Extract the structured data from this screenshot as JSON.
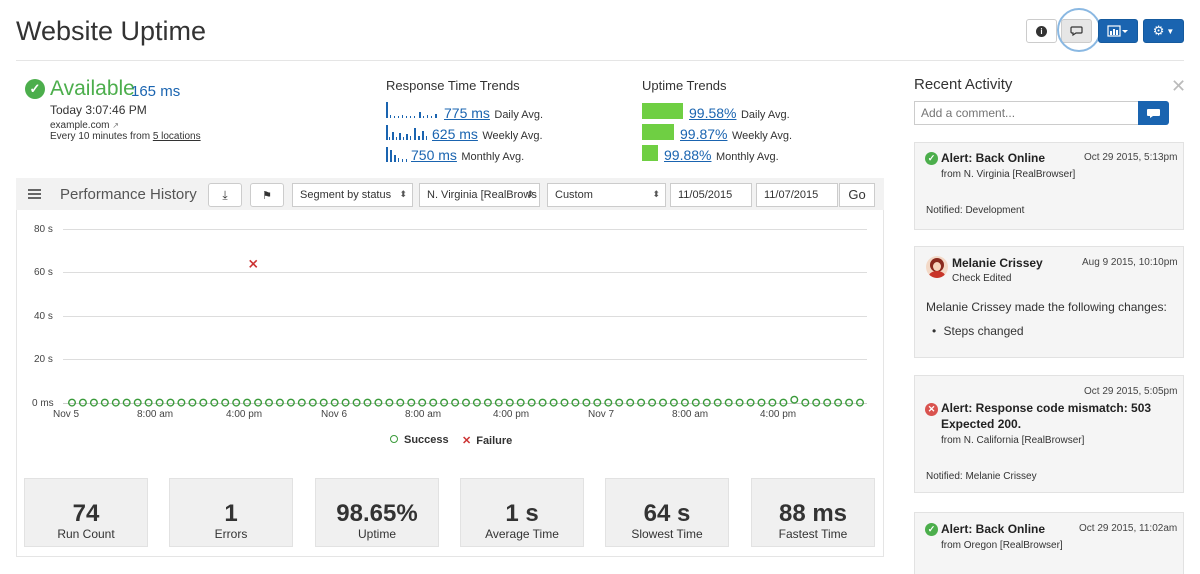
{
  "header": {
    "title": "Website Uptime",
    "buttons": [
      {
        "name": "info",
        "icon": "info-icon"
      },
      {
        "name": "comments",
        "icon": "comment-icon",
        "active": true
      },
      {
        "name": "reports",
        "icon": "bar-chart-icon"
      },
      {
        "name": "settings",
        "icon": "gear-icon"
      }
    ]
  },
  "status": {
    "state": "Available",
    "response": "165 ms",
    "time": "Today 3:07:46 PM",
    "site": "example.com",
    "frequency_prefix": "Every 10 minutes from ",
    "locations_link": "5 locations"
  },
  "response_trends": {
    "title": "Response Time Trends",
    "rows": [
      {
        "value": "775 ms",
        "label": "Daily Avg."
      },
      {
        "value": "625 ms",
        "label": "Weekly Avg."
      },
      {
        "value": "750 ms",
        "label": "Monthly Avg."
      }
    ]
  },
  "uptime_trends": {
    "title": "Uptime Trends",
    "rows": [
      {
        "value": "99.58%",
        "label": "Daily Avg."
      },
      {
        "value": "99.87%",
        "label": "Weekly Avg.",
        "fill": 0.7
      },
      {
        "value": "99.88%",
        "label": "Monthly Avg.",
        "fill": 0.45
      }
    ]
  },
  "performance": {
    "title": "Performance History",
    "segment": "Segment by status",
    "location": "N. Virginia [RealBrows",
    "range": "Custom",
    "start_date": "11/05/2015",
    "end_date": "11/07/2015",
    "go_label": "Go"
  },
  "chart_data": {
    "type": "scatter",
    "yticks": [
      "80 s",
      "60 s",
      "40 s",
      "20 s",
      "0 ms"
    ],
    "ylim": [
      0,
      80
    ],
    "xticks": [
      "Nov 5",
      "8:00 am",
      "4:00 pm",
      "Nov 6",
      "8:00 am",
      "4:00 pm",
      "Nov 7",
      "8:00 am",
      "4:00 pm"
    ],
    "series": [
      {
        "name": "Success",
        "color": "#3a9a3a",
        "count": 73,
        "value": 0.2
      },
      {
        "name": "Failure",
        "color": "#cc3333",
        "points": [
          {
            "x_index": 0.23,
            "y": 64
          }
        ]
      }
    ]
  },
  "stats": [
    {
      "value": "74",
      "label": "Run Count"
    },
    {
      "value": "1",
      "label": "Errors"
    },
    {
      "value": "98.65%",
      "label": "Uptime"
    },
    {
      "value": "1 s",
      "label": "Average Time"
    },
    {
      "value": "64 s",
      "label": "Slowest Time"
    },
    {
      "value": "88 ms",
      "label": "Fastest Time"
    }
  ],
  "activity": {
    "title": "Recent Activity",
    "comment_placeholder": "Add a comment...",
    "cards": [
      {
        "type": "ok",
        "title": "Alert: Back Online",
        "date": "Oct 29 2015, 5:13pm",
        "sub": "from N. Virginia [RealBrowser]",
        "notified": "Notified: Development"
      },
      {
        "type": "user",
        "title": "Melanie Crissey",
        "date": "Aug 9 2015, 10:10pm",
        "sub": "Check Edited",
        "body": "Melanie Crissey made the following changes:",
        "bullet": "Steps changed"
      },
      {
        "type": "err",
        "date": "Oct 29 2015, 5:05pm",
        "title_line1": "Alert: Response code mismatch: 503",
        "title_line2": "Expected 200.",
        "sub": "from N. California [RealBrowser]",
        "notified": "Notified: Melanie Crissey"
      },
      {
        "type": "ok",
        "title": "Alert: Back Online",
        "date": "Oct 29 2015, 11:02am",
        "sub": "from Oregon [RealBrowser]"
      }
    ]
  }
}
